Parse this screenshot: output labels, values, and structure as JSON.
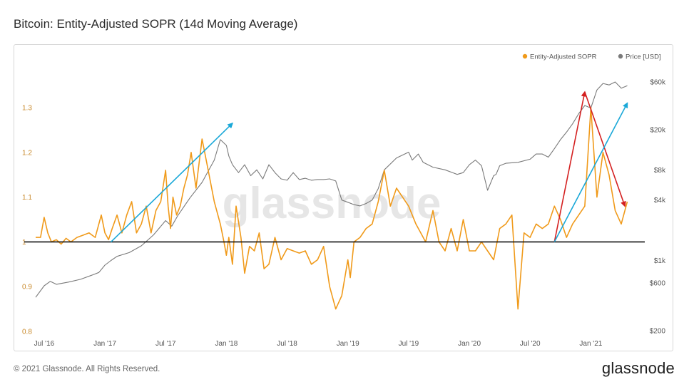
{
  "title": "Bitcoin: Entity-Adjusted SOPR (14d Moving Average)",
  "footer": "© 2021 Glassnode. All Rights Reserved.",
  "brand": "glassnode",
  "watermark": "glassnode",
  "colors": {
    "sopr": "#f09a1a",
    "price": "#7a7a7a",
    "blue_arrow": "#1aa8d8",
    "red_arrow": "#d42020",
    "baseline": "#111111",
    "left_axis": "#c8892a"
  },
  "chart_data": {
    "type": "line",
    "title": "Bitcoin: Entity-Adjusted SOPR (14d Moving Average)",
    "legend": [
      "Entity-Adjusted SOPR",
      "Price [USD]"
    ],
    "legend_position": "top-right",
    "x_ticks": [
      {
        "label": "Jul '16",
        "t": 0.0
      },
      {
        "label": "Jan '17",
        "t": 0.5
      },
      {
        "label": "Jul '17",
        "t": 1.0
      },
      {
        "label": "Jan '18",
        "t": 1.5
      },
      {
        "label": "Jul '18",
        "t": 2.0
      },
      {
        "label": "Jan '19",
        "t": 2.5
      },
      {
        "label": "Jul '19",
        "t": 3.0
      },
      {
        "label": "Jan '20",
        "t": 3.5
      },
      {
        "label": "Jul '20",
        "t": 4.0
      },
      {
        "label": "Jan '21",
        "t": 4.5
      }
    ],
    "x_range": [
      -0.07,
      4.85
    ],
    "left_axis": {
      "ticks": [
        0.8,
        0.9,
        1,
        1.1,
        1.2,
        1.3
      ],
      "labels": [
        "0.8",
        "0.9",
        "1",
        "1.1",
        "1.2",
        "1.3"
      ],
      "range": [
        0.8,
        1.3
      ]
    },
    "right_axis": {
      "scale": "log",
      "ticks": [
        200,
        600,
        1000,
        4000,
        8000,
        20000,
        60000
      ],
      "labels": [
        "$200",
        "$600",
        "$1k",
        "$4k",
        "$8k",
        "$20k",
        "$60k"
      ],
      "range": [
        200,
        60000
      ]
    },
    "baseline": 1,
    "series": [
      {
        "name": "Entity-Adjusted SOPR",
        "t": [
          -0.07,
          -0.03,
          0.0,
          0.03,
          0.06,
          0.1,
          0.14,
          0.18,
          0.22,
          0.27,
          0.32,
          0.37,
          0.42,
          0.47,
          0.5,
          0.53,
          0.56,
          0.6,
          0.64,
          0.68,
          0.72,
          0.76,
          0.8,
          0.84,
          0.88,
          0.92,
          0.96,
          1.0,
          1.02,
          1.04,
          1.06,
          1.09,
          1.12,
          1.15,
          1.18,
          1.21,
          1.25,
          1.3,
          1.35,
          1.4,
          1.45,
          1.48,
          1.5,
          1.52,
          1.55,
          1.58,
          1.62,
          1.65,
          1.69,
          1.73,
          1.77,
          1.81,
          1.85,
          1.9,
          1.95,
          2.0,
          2.05,
          2.1,
          2.15,
          2.2,
          2.25,
          2.3,
          2.35,
          2.4,
          2.45,
          2.5,
          2.52,
          2.55,
          2.6,
          2.65,
          2.7,
          2.75,
          2.8,
          2.85,
          2.9,
          2.95,
          3.0,
          3.03,
          3.06,
          3.1,
          3.14,
          3.2,
          3.25,
          3.3,
          3.35,
          3.4,
          3.45,
          3.5,
          3.55,
          3.6,
          3.65,
          3.7,
          3.75,
          3.8,
          3.85,
          3.9,
          3.95,
          4.0,
          4.05,
          4.1,
          4.15,
          4.2,
          4.25,
          4.3,
          4.35,
          4.4,
          4.45,
          4.5,
          4.55,
          4.6,
          4.65,
          4.7,
          4.75,
          4.8
        ],
        "values": [
          1.01,
          1.01,
          1.055,
          1.02,
          1.0,
          1.005,
          0.995,
          1.008,
          1.0,
          1.01,
          1.015,
          1.02,
          1.01,
          1.06,
          1.02,
          1.005,
          1.03,
          1.06,
          1.02,
          1.06,
          1.09,
          1.02,
          1.04,
          1.08,
          1.02,
          1.07,
          1.09,
          1.16,
          1.08,
          1.03,
          1.1,
          1.06,
          1.08,
          1.12,
          1.15,
          1.2,
          1.12,
          1.23,
          1.16,
          1.09,
          1.04,
          1.0,
          0.97,
          1.01,
          0.95,
          1.08,
          1.01,
          0.93,
          0.99,
          0.98,
          1.02,
          0.94,
          0.95,
          1.01,
          0.96,
          0.985,
          0.98,
          0.975,
          0.98,
          0.95,
          0.96,
          0.99,
          0.9,
          0.85,
          0.88,
          0.96,
          0.92,
          1.0,
          1.01,
          1.03,
          1.04,
          1.09,
          1.16,
          1.08,
          1.12,
          1.1,
          1.08,
          1.06,
          1.04,
          1.02,
          1.0,
          1.07,
          1.0,
          0.98,
          1.03,
          0.98,
          1.05,
          0.98,
          0.98,
          1.0,
          0.98,
          0.96,
          1.03,
          1.04,
          1.06,
          0.85,
          1.02,
          1.01,
          1.04,
          1.03,
          1.04,
          1.08,
          1.05,
          1.01,
          1.04,
          1.06,
          1.08,
          1.3,
          1.1,
          1.2,
          1.15,
          1.07,
          1.04,
          1.09
        ]
      },
      {
        "name": "Price [USD]",
        "t": [
          -0.07,
          0.0,
          0.05,
          0.1,
          0.2,
          0.3,
          0.4,
          0.45,
          0.5,
          0.55,
          0.6,
          0.7,
          0.8,
          0.9,
          1.0,
          1.05,
          1.1,
          1.2,
          1.3,
          1.4,
          1.45,
          1.5,
          1.52,
          1.55,
          1.6,
          1.65,
          1.7,
          1.75,
          1.8,
          1.85,
          1.9,
          1.95,
          2.0,
          2.05,
          2.1,
          2.15,
          2.2,
          2.25,
          2.3,
          2.35,
          2.4,
          2.45,
          2.5,
          2.55,
          2.6,
          2.65,
          2.7,
          2.75,
          2.8,
          2.9,
          3.0,
          3.03,
          3.08,
          3.12,
          3.2,
          3.3,
          3.4,
          3.45,
          3.5,
          3.55,
          3.6,
          3.65,
          3.7,
          3.72,
          3.75,
          3.8,
          3.9,
          4.0,
          4.05,
          4.1,
          4.15,
          4.2,
          4.25,
          4.3,
          4.35,
          4.4,
          4.45,
          4.5,
          4.55,
          4.6,
          4.65,
          4.7,
          4.75,
          4.8
        ],
        "values": [
          430,
          560,
          620,
          580,
          610,
          650,
          720,
          760,
          900,
          1000,
          1100,
          1200,
          1400,
          1800,
          2500,
          2200,
          2800,
          4200,
          6000,
          10000,
          16000,
          14000,
          11000,
          9000,
          7500,
          9000,
          7000,
          8000,
          6500,
          9000,
          7500,
          6500,
          6300,
          7500,
          6400,
          6600,
          6300,
          6400,
          6400,
          6500,
          6200,
          4000,
          3800,
          3600,
          3500,
          3700,
          4000,
          5200,
          8000,
          10500,
          12000,
          10000,
          11500,
          9500,
          8500,
          8000,
          7200,
          7500,
          9000,
          10000,
          8800,
          5000,
          7000,
          7200,
          8800,
          9300,
          9500,
          10200,
          11500,
          11500,
          10700,
          13000,
          16000,
          19000,
          23000,
          29000,
          35000,
          33000,
          50000,
          58000,
          56000,
          60000,
          52000,
          55000
        ]
      }
    ],
    "annotations": [
      {
        "type": "arrow",
        "color": "blue",
        "from": [
          0.55,
          1.0
        ],
        "to": [
          1.55,
          1.265
        ]
      },
      {
        "type": "arrow",
        "color": "red",
        "from": [
          4.2,
          1.0
        ],
        "to": [
          4.45,
          1.335
        ]
      },
      {
        "type": "arrow",
        "color": "red",
        "from": [
          4.45,
          1.335
        ],
        "to": [
          4.78,
          1.08
        ]
      },
      {
        "type": "arrow",
        "color": "blue",
        "from": [
          4.2,
          1.0
        ],
        "to": [
          4.8,
          1.31
        ]
      }
    ]
  }
}
